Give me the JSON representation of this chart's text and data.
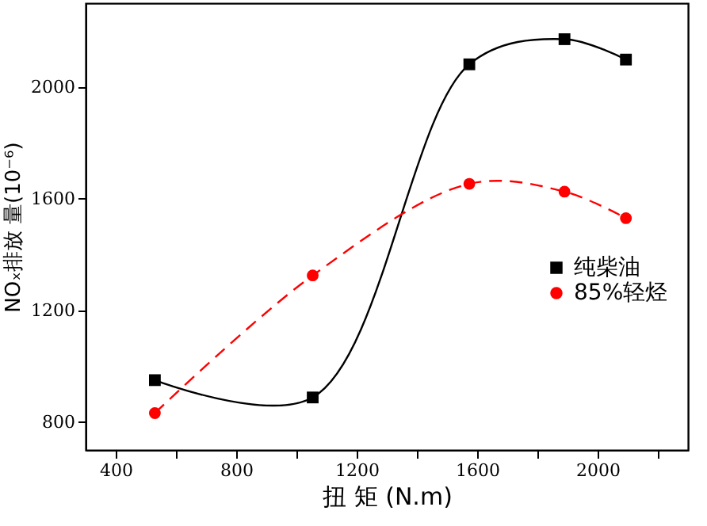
{
  "chart_data": {
    "type": "line",
    "xlabel": "扭 矩 (N.m)",
    "ylabel": "NOₓ排放 量(10⁻⁶)",
    "x": [
      530,
      1054,
      1574,
      1890,
      2094
    ],
    "series": [
      {
        "name": "纯柴油",
        "color": "#000000",
        "values": [
          950,
          888,
          2081,
          2171,
          2098
        ],
        "marker": "square",
        "line_style": "solid"
      },
      {
        "name": "85%轻烃",
        "color": "#ff0000",
        "values": [
          832,
          1325,
          1653,
          1625,
          1530
        ],
        "marker": "circle",
        "line_style": "dashed"
      }
    ],
    "xlim": [
      300,
      2300
    ],
    "xticks": [
      400,
      {
        "value": 600,
        "label": null
      },
      800,
      {
        "value": 1000,
        "label": null
      },
      1200,
      {
        "value": 1400,
        "label": null
      },
      1600,
      {
        "value": 1800,
        "label": null
      },
      2000,
      {
        "value": 2200,
        "label": null
      }
    ],
    "ylim": [
      700,
      2300
    ],
    "yticks": [
      800,
      1200,
      1600,
      2000
    ],
    "grid": false,
    "legend": "right"
  }
}
